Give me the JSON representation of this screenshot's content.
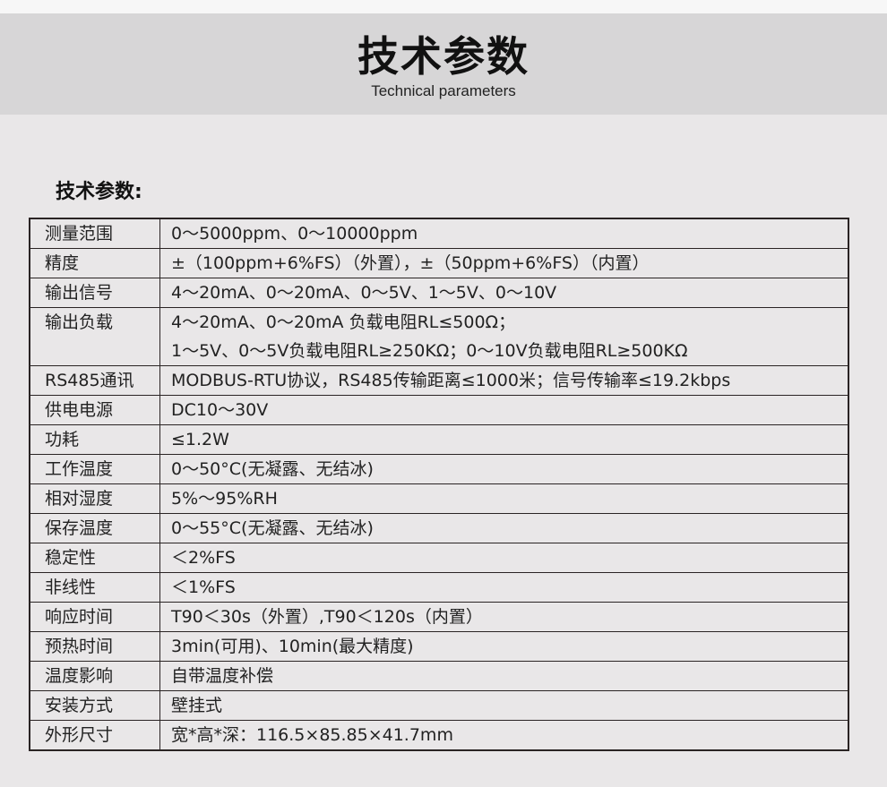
{
  "banner": {
    "title": "技术参数",
    "subtitle": "Technical parameters"
  },
  "section_title": "技术参数:",
  "rows": [
    {
      "label": "测量范围",
      "values": [
        "0～5000ppm、0～10000ppm"
      ]
    },
    {
      "label": "精度",
      "values": [
        "±（100ppm+6%FS）（外置），±（50ppm+6%FS）（内置）"
      ]
    },
    {
      "label": "输出信号",
      "values": [
        "4～20mA、0～20mA、0～5V、1～5V、0～10V"
      ]
    },
    {
      "label": "输出负载",
      "values": [
        "4～20mA、0～20mA 负载电阻RL≤500Ω；",
        "1～5V、0～5V负载电阻RL≥250KΩ；0～10V负载电阻RL≥500KΩ"
      ]
    },
    {
      "label": "RS485通讯",
      "values": [
        "MODBUS-RTU协议，RS485传输距离≤1000米；信号传输率≤19.2kbps"
      ]
    },
    {
      "label": "供电电源",
      "values": [
        "DC10～30V"
      ]
    },
    {
      "label": "功耗",
      "values": [
        "≤1.2W"
      ]
    },
    {
      "label": "工作温度",
      "values": [
        "0～50°C(无凝露、无结冰)"
      ]
    },
    {
      "label": "相对湿度",
      "values": [
        "5%～95%RH"
      ]
    },
    {
      "label": "保存温度",
      "values": [
        "0～55°C(无凝露、无结冰)"
      ]
    },
    {
      "label": "稳定性",
      "values": [
        "＜2%FS"
      ]
    },
    {
      "label": "非线性",
      "values": [
        "＜1%FS"
      ]
    },
    {
      "label": "响应时间",
      "values": [
        "T90＜30s（外置）,T90＜120s（内置）"
      ]
    },
    {
      "label": "预热时间",
      "values": [
        "3min(可用)、10min(最大精度)"
      ]
    },
    {
      "label": "温度影响",
      "values": [
        "自带温度补偿"
      ]
    },
    {
      "label": "安装方式",
      "values": [
        "壁挂式"
      ]
    },
    {
      "label": "外形尺寸",
      "values": [
        "宽*高*深：116.5×85.85×41.7mm"
      ]
    }
  ]
}
